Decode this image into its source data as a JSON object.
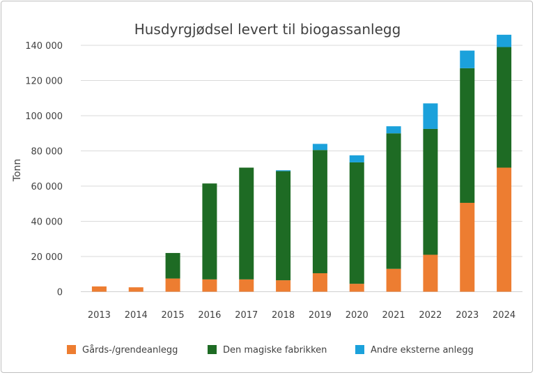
{
  "chart_data": {
    "type": "bar",
    "stacked": true,
    "title": "Husdyrgjødsel levert til biogassanlegg",
    "ylabel": "Tonn",
    "xlabel": "",
    "ylim": [
      0,
      140000
    ],
    "y_ticks": [
      "0",
      "20 000",
      "40 000",
      "60 000",
      "80 000",
      "100 000",
      "120 000",
      "140 000"
    ],
    "y_tick_values": [
      0,
      20000,
      40000,
      60000,
      80000,
      100000,
      120000,
      140000
    ],
    "grid": true,
    "legend_position": "bottom",
    "categories": [
      "2013",
      "2014",
      "2015",
      "2016",
      "2017",
      "2018",
      "2019",
      "2020",
      "2021",
      "2022",
      "2023",
      "2024"
    ],
    "series": [
      {
        "name": "Gårds-/grendeanlegg",
        "color": "#ED7D31",
        "values": [
          3000,
          2500,
          7500,
          7000,
          7000,
          6500,
          10500,
          4500,
          13000,
          21000,
          50500,
          70500
        ]
      },
      {
        "name": "Den magiske fabrikken",
        "color": "#1E6B24",
        "values": [
          0,
          0,
          14500,
          54500,
          63500,
          62000,
          70000,
          69000,
          77000,
          71500,
          76500,
          68500
        ]
      },
      {
        "name": "Andre eksterne anlegg",
        "color": "#1BA1DB",
        "values": [
          0,
          0,
          0,
          0,
          0,
          500,
          3500,
          4000,
          4000,
          14500,
          10000,
          7000
        ]
      }
    ]
  }
}
